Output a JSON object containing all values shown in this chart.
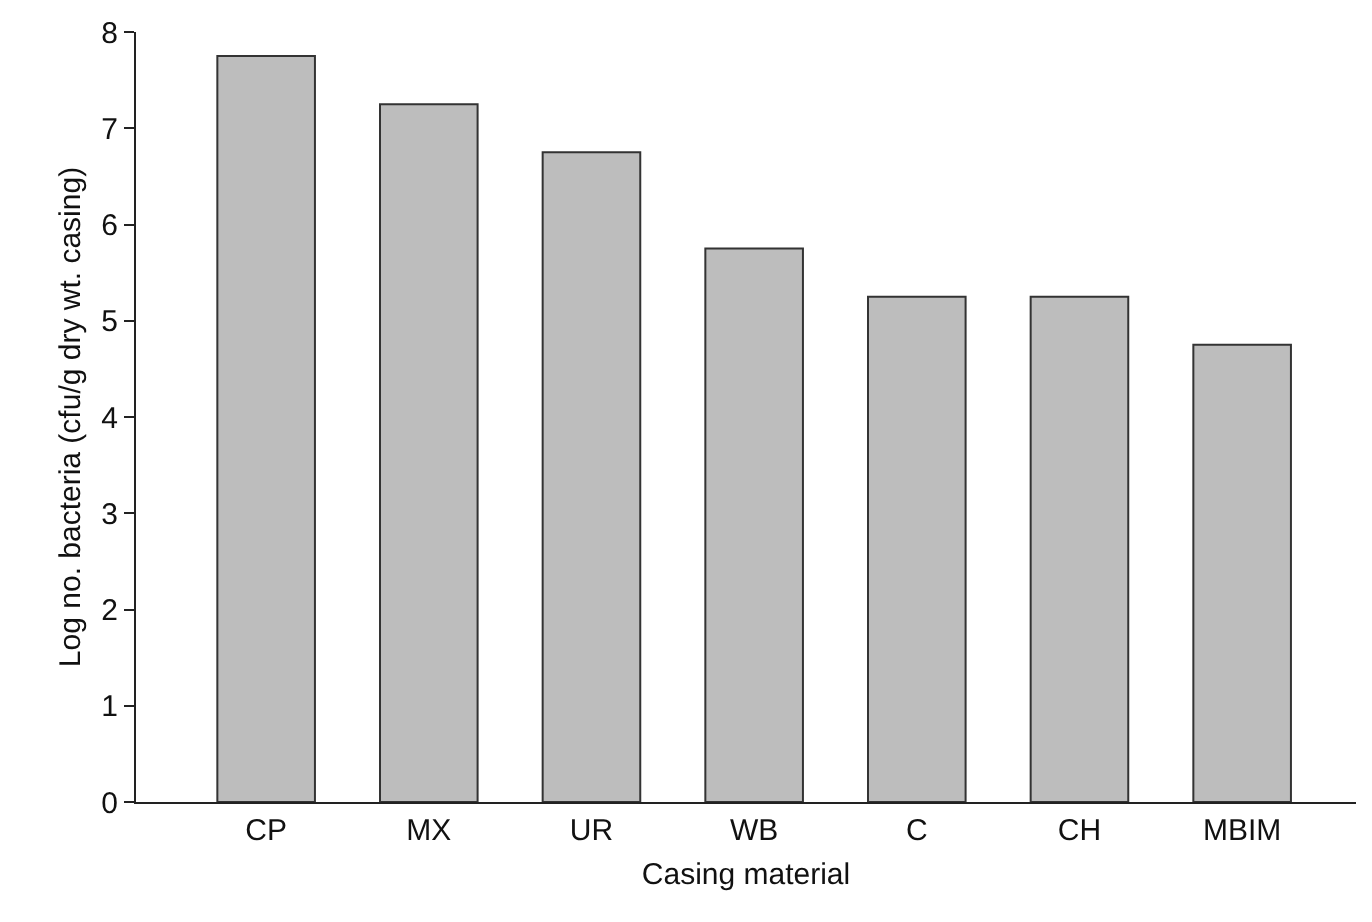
{
  "chart_data": {
    "type": "bar",
    "xlabel": "Casing material",
    "ylabel": "Log no. bacteria (cfu/g dry wt. casing)",
    "categories": [
      "CP",
      "MX",
      "UR",
      "WB",
      "C",
      "CH",
      "MBIM"
    ],
    "values": [
      7.75,
      7.25,
      6.75,
      5.75,
      5.25,
      5.25,
      4.75
    ],
    "color": "#bdbdbd",
    "ylim": [
      0,
      8
    ],
    "yticks": [
      0,
      1,
      2,
      3,
      4,
      5,
      6,
      7,
      8
    ],
    "legend": false
  }
}
